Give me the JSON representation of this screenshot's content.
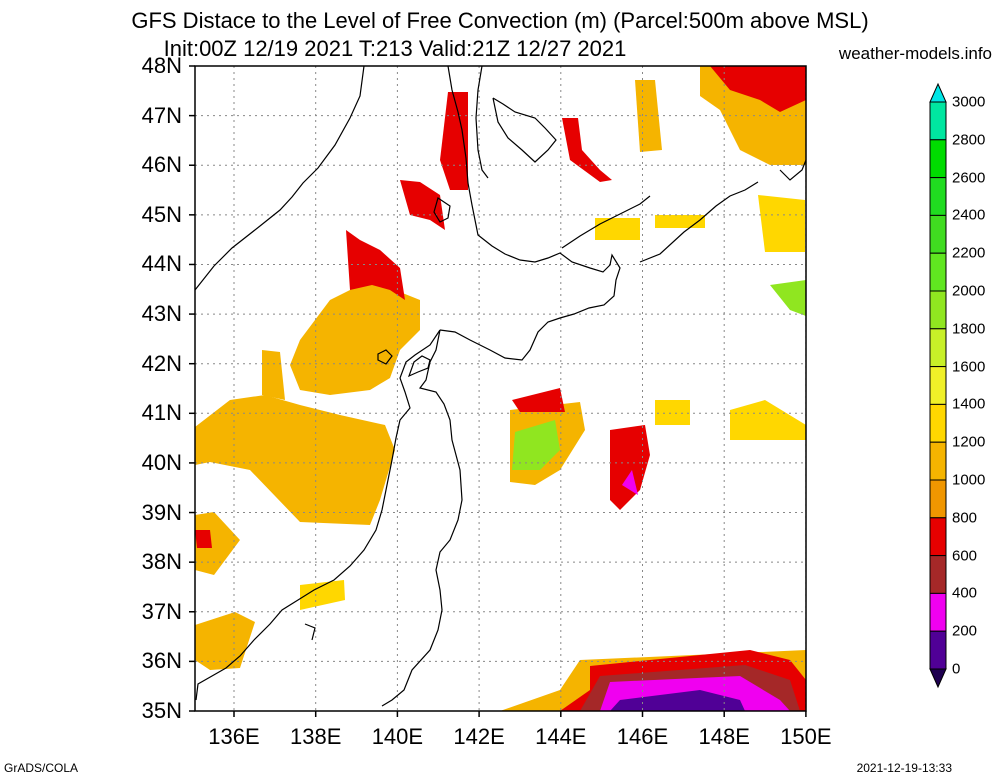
{
  "title": "GFS Distace to the Level of Free Convection (m) (Parcel:500m above MSL)",
  "subtitle": "Init:00Z 12/19 2021 T:213 Valid:21Z 12/27 2021",
  "site": "weather-models.info",
  "footer_left": "GrADS/COLA",
  "footer_right": "2021-12-19-13:33",
  "lat_labels": [
    "48N",
    "47N",
    "46N",
    "45N",
    "44N",
    "43N",
    "42N",
    "41N",
    "40N",
    "39N",
    "38N",
    "37N",
    "36N",
    "35N"
  ],
  "lon_labels": [
    "136E",
    "138E",
    "140E",
    "142E",
    "144E",
    "146E",
    "148E",
    "150E"
  ],
  "colorbar": {
    "levels": [
      "3000",
      "2800",
      "2600",
      "2400",
      "2200",
      "2000",
      "1800",
      "1600",
      "1400",
      "1200",
      "1000",
      "800",
      "600",
      "400",
      "200",
      "0"
    ],
    "colors": [
      "#00e6e6",
      "#00e6a0",
      "#00dc00",
      "#20dc20",
      "#40dc20",
      "#60e620",
      "#90e620",
      "#c8f028",
      "#f0f028",
      "#ffd700",
      "#f5b400",
      "#f09600",
      "#e60000",
      "#a52828",
      "#f000f0",
      "#500096",
      "#1e0050"
    ]
  }
}
